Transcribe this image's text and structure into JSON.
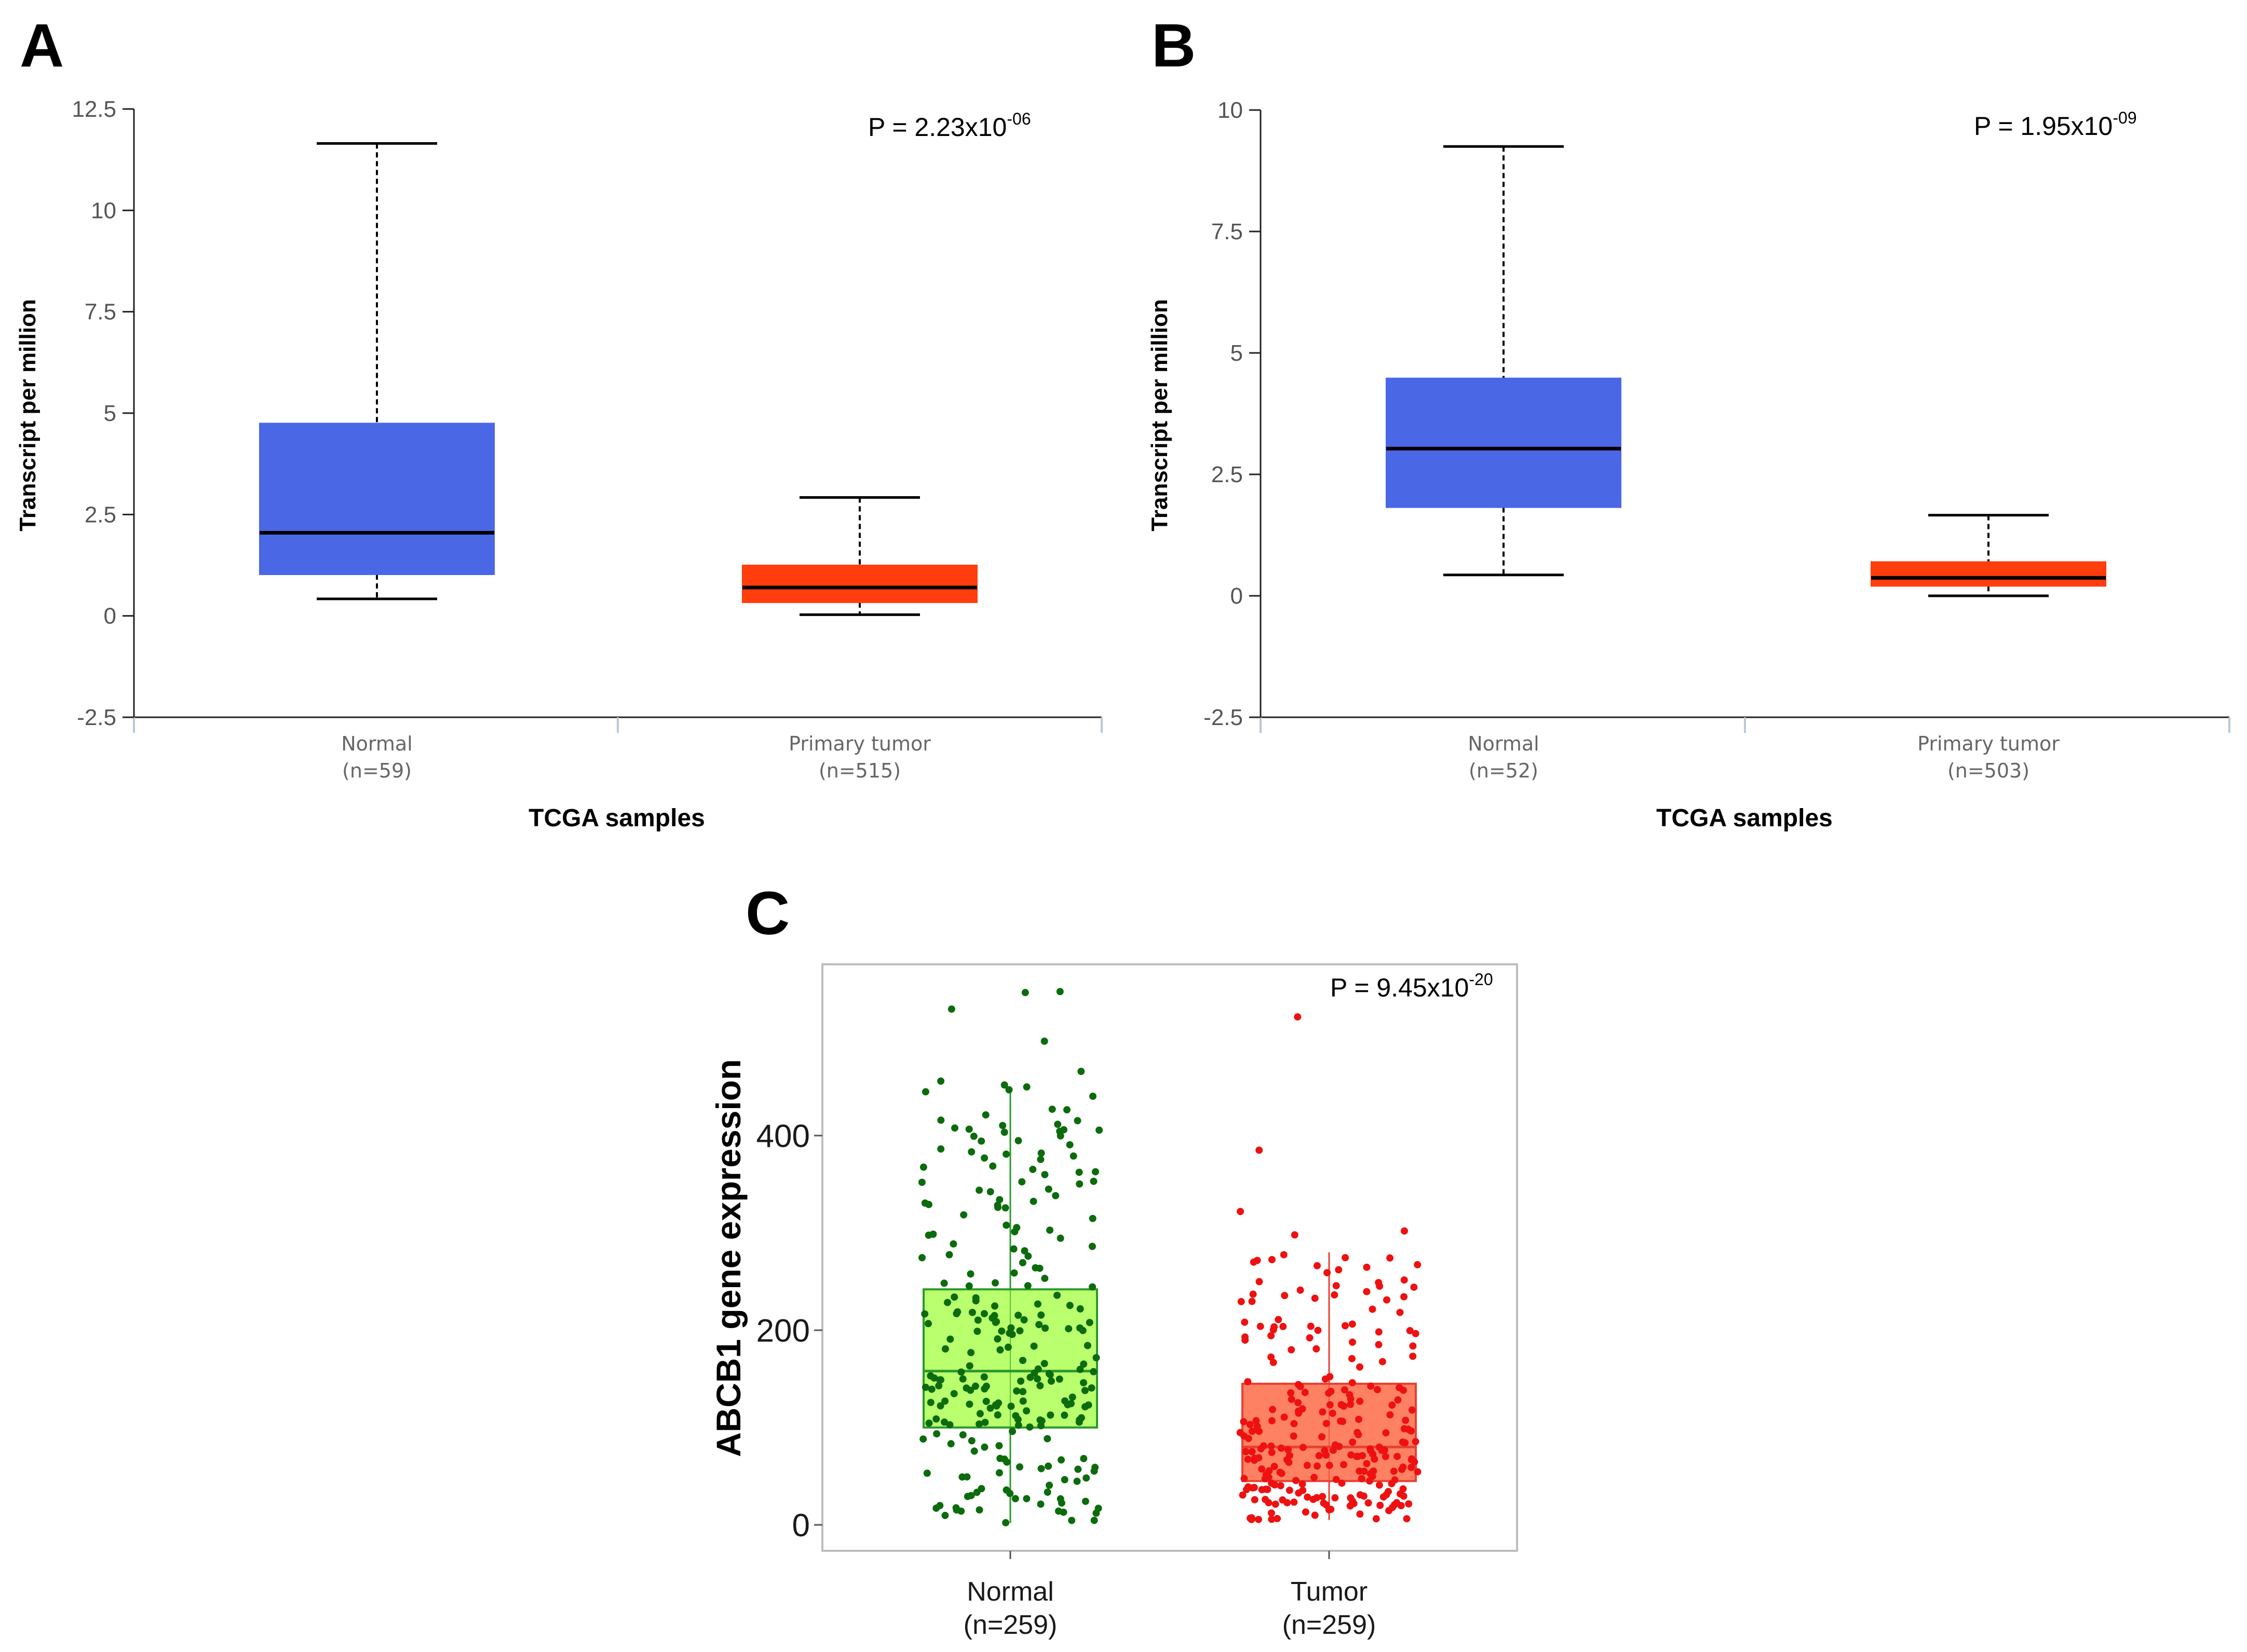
{
  "figure": {
    "panels": [
      {
        "letter": "A"
      },
      {
        "letter": "B"
      },
      {
        "letter": "C"
      }
    ]
  },
  "chart_data": [
    {
      "panel": "A",
      "type": "box",
      "title": "",
      "xlabel": "TCGA samples",
      "ylabel": "Transcript per million",
      "ylim": [
        -2.5,
        12.5
      ],
      "yticks": [
        -2.5,
        0,
        2.5,
        5,
        7.5,
        10,
        12.5
      ],
      "ytick_labels": [
        "-2.5",
        "0",
        "2.5",
        "5",
        "7.5",
        "10",
        "12.5"
      ],
      "annotation": {
        "prefix": "P = 2.23x10",
        "exponent": "-06"
      },
      "groups": [
        {
          "name": "Normal",
          "n_label": "(n=59)",
          "color": "#4a67e6",
          "min": 0.42,
          "q1": 1.02,
          "median": 2.05,
          "q3": 4.75,
          "max": 11.65
        },
        {
          "name": "Primary tumor",
          "n_label": "(n=515)",
          "color": "#ff3d0d",
          "min": 0.03,
          "q1": 0.33,
          "median": 0.7,
          "q3": 1.25,
          "max": 2.92
        }
      ]
    },
    {
      "panel": "B",
      "type": "box",
      "title": "",
      "xlabel": "TCGA samples",
      "ylabel": "Transcript per million",
      "ylim": [
        -2.5,
        10
      ],
      "yticks": [
        -2.5,
        0,
        2.5,
        5,
        7.5,
        10
      ],
      "ytick_labels": [
        "-2.5",
        "0",
        "2.5",
        "5",
        "7.5",
        "10"
      ],
      "annotation": {
        "prefix": "P = 1.95x10",
        "exponent": "-09"
      },
      "groups": [
        {
          "name": "Normal",
          "n_label": "(n=52)",
          "color": "#4a67e6",
          "min": 0.43,
          "q1": 1.82,
          "median": 3.03,
          "q3": 4.48,
          "max": 9.25
        },
        {
          "name": "Primary tumor",
          "n_label": "(n=503)",
          "color": "#ff3d0d",
          "min": 0.0,
          "q1": 0.2,
          "median": 0.37,
          "q3": 0.7,
          "max": 1.66
        }
      ]
    },
    {
      "panel": "C",
      "type": "box",
      "title": "",
      "xlabel": "",
      "ylabel": "ABCB1 gene expression",
      "ylim": [
        -25,
        575
      ],
      "yticks": [
        0,
        200,
        400
      ],
      "ytick_labels": [
        "0",
        "200",
        "400"
      ],
      "annotation": {
        "prefix": "P = 9.45x10",
        "exponent": "-20"
      },
      "groups": [
        {
          "name": "Normal",
          "n_label": "(n=259)",
          "fill": "#b5ff66",
          "stroke": "#2a9a2a",
          "point_color": "#0c6b0c",
          "min": 2,
          "q1": 100,
          "median": 158,
          "q3": 242,
          "max": 448,
          "n_points": 259,
          "outliers": [
            547,
            548,
            530,
            497,
            466,
            456,
            452,
            450,
            445
          ]
        },
        {
          "name": "Tumor",
          "n_label": "(n=259)",
          "fill": "#ff7a5c",
          "stroke": "#e84030",
          "point_color": "#ee1111",
          "min": 5,
          "q1": 45,
          "median": 80,
          "q3": 145,
          "max": 280,
          "n_points": 259,
          "outliers": [
            522,
            385,
            322,
            302,
            298
          ]
        }
      ]
    }
  ]
}
